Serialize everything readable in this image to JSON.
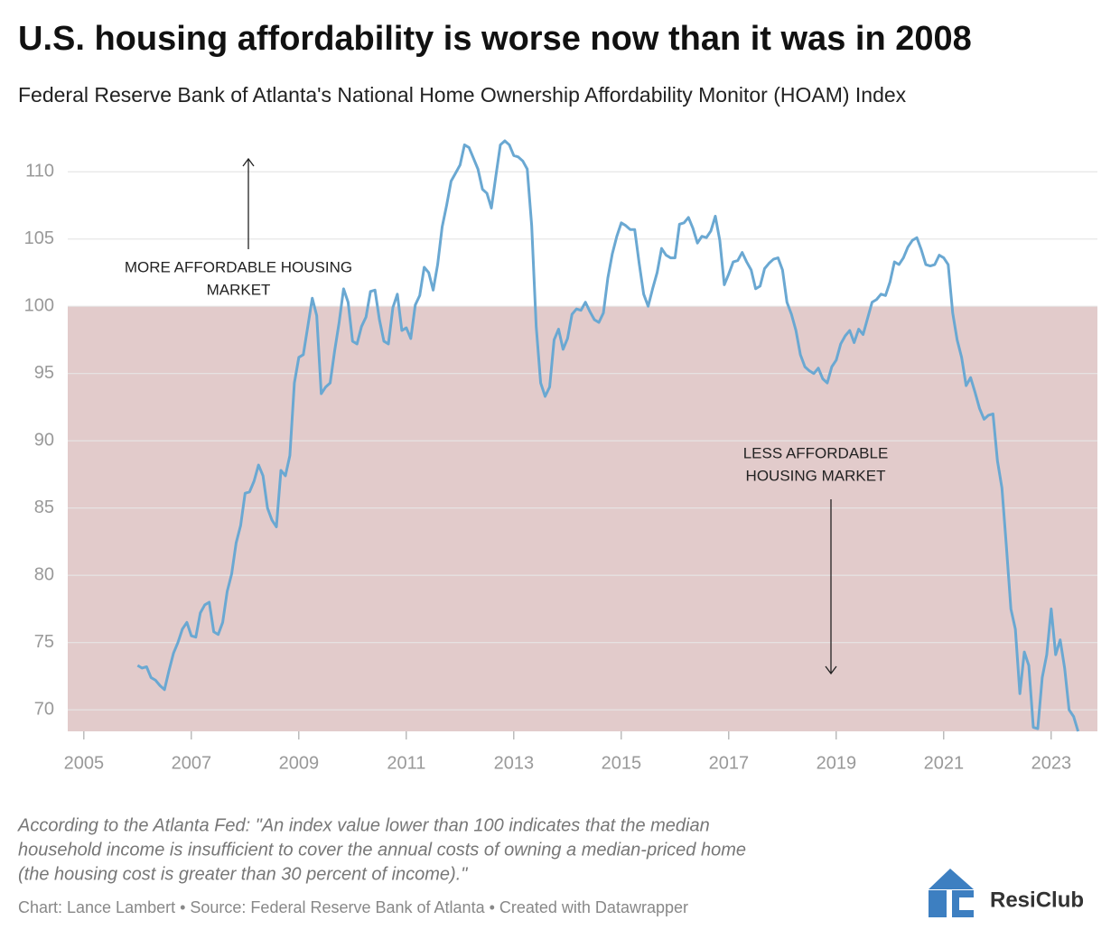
{
  "chart_data": {
    "type": "line",
    "title": "U.S. housing affordability is worse now than it was in 2008",
    "subtitle": "Federal Reserve Bank of Atlanta's National Home Ownership Affordability Monitor (HOAM) Index",
    "annotations": [
      {
        "lines": [
          "MORE AFFORDABLE HOUSING",
          "MARKET"
        ]
      },
      {
        "lines": [
          "LESS AFFORDABLE",
          "HOUSING MARKET"
        ]
      }
    ],
    "notes": [
      "According to the Atlanta Fed: \"An index value lower than 100 indicates that the median",
      "household income is insufficient to cover the annual costs of owning a median-priced home",
      "(the housing cost is greater than 30 percent of income).\""
    ],
    "source": "Chart: Lance Lambert • Source: Federal Reserve Bank of Atlanta • Created with Datawrapper",
    "brand": "ResiClub",
    "color": "#6aa8d2",
    "shade_below": 100,
    "shade_color": "#e2cbcb",
    "grid": true,
    "xlim": [
      2004.7,
      2023.86
    ],
    "ylim": [
      68.4,
      112.7
    ],
    "xticks": [
      2005,
      2007,
      2009,
      2011,
      2013,
      2015,
      2017,
      2019,
      2021,
      2023
    ],
    "yticks": [
      70,
      75,
      80,
      85,
      90,
      95,
      100,
      105,
      110
    ],
    "x": [
      2006,
      2006.083,
      2006.167,
      2006.25,
      2006.333,
      2006.417,
      2006.5,
      2006.583,
      2006.667,
      2006.75,
      2006.833,
      2006.917,
      2007,
      2007.083,
      2007.167,
      2007.25,
      2007.333,
      2007.417,
      2007.5,
      2007.583,
      2007.667,
      2007.75,
      2007.833,
      2007.917,
      2008,
      2008.083,
      2008.167,
      2008.25,
      2008.333,
      2008.417,
      2008.5,
      2008.583,
      2008.667,
      2008.75,
      2008.833,
      2008.917,
      2009,
      2009.083,
      2009.167,
      2009.25,
      2009.333,
      2009.417,
      2009.5,
      2009.583,
      2009.667,
      2009.75,
      2009.833,
      2009.917,
      2010,
      2010.083,
      2010.167,
      2010.25,
      2010.333,
      2010.417,
      2010.5,
      2010.583,
      2010.667,
      2010.75,
      2010.833,
      2010.917,
      2011,
      2011.083,
      2011.167,
      2011.25,
      2011.333,
      2011.417,
      2011.5,
      2011.583,
      2011.667,
      2011.75,
      2011.833,
      2011.917,
      2012,
      2012.083,
      2012.167,
      2012.25,
      2012.333,
      2012.417,
      2012.5,
      2012.583,
      2012.667,
      2012.75,
      2012.833,
      2012.917,
      2013,
      2013.083,
      2013.167,
      2013.25,
      2013.333,
      2013.417,
      2013.5,
      2013.583,
      2013.667,
      2013.75,
      2013.833,
      2013.917,
      2014,
      2014.083,
      2014.167,
      2014.25,
      2014.333,
      2014.417,
      2014.5,
      2014.583,
      2014.667,
      2014.75,
      2014.833,
      2014.917,
      2015,
      2015.083,
      2015.167,
      2015.25,
      2015.333,
      2015.417,
      2015.5,
      2015.583,
      2015.667,
      2015.75,
      2015.833,
      2015.917,
      2016,
      2016.083,
      2016.167,
      2016.25,
      2016.333,
      2016.417,
      2016.5,
      2016.583,
      2016.667,
      2016.75,
      2016.833,
      2016.917,
      2017,
      2017.083,
      2017.167,
      2017.25,
      2017.333,
      2017.417,
      2017.5,
      2017.583,
      2017.667,
      2017.75,
      2017.833,
      2017.917,
      2018,
      2018.083,
      2018.167,
      2018.25,
      2018.333,
      2018.417,
      2018.5,
      2018.583,
      2018.667,
      2018.75,
      2018.833,
      2018.917,
      2019,
      2019.083,
      2019.167,
      2019.25,
      2019.333,
      2019.417,
      2019.5,
      2019.583,
      2019.667,
      2019.75,
      2019.833,
      2019.917,
      2020,
      2020.083,
      2020.167,
      2020.25,
      2020.333,
      2020.417,
      2020.5,
      2020.583,
      2020.667,
      2020.75,
      2020.833,
      2020.917,
      2021,
      2021.083,
      2021.167,
      2021.25,
      2021.333,
      2021.417,
      2021.5,
      2021.583,
      2021.667,
      2021.75,
      2021.833,
      2021.917,
      2022,
      2022.083,
      2022.167,
      2022.25,
      2022.333,
      2022.417,
      2022.5,
      2022.583,
      2022.667,
      2022.75,
      2022.833,
      2022.917,
      2023,
      2023.083,
      2023.167,
      2023.25,
      2023.333,
      2023.417,
      2023.5
    ],
    "values": [
      73.3,
      73.1,
      73.2,
      72.4,
      72.2,
      71.8,
      71.5,
      72.9,
      74.2,
      75.0,
      76.0,
      76.5,
      75.5,
      75.4,
      77.2,
      77.8,
      78.0,
      75.8,
      75.6,
      76.5,
      78.8,
      80.1,
      82.4,
      83.7,
      86.1,
      86.2,
      87.0,
      88.2,
      87.4,
      85.0,
      84.1,
      83.6,
      87.8,
      87.4,
      88.9,
      94.3,
      96.2,
      96.4,
      98.5,
      100.6,
      99.3,
      93.5,
      94.0,
      94.3,
      96.7,
      98.8,
      101.3,
      100.3,
      97.4,
      97.2,
      98.5,
      99.2,
      101.1,
      101.2,
      99.0,
      97.4,
      97.2,
      99.9,
      100.9,
      98.2,
      98.4,
      97.6,
      100.1,
      100.8,
      102.9,
      102.5,
      101.2,
      103.1,
      105.9,
      107.5,
      109.3,
      109.9,
      110.5,
      112.0,
      111.8,
      111.0,
      110.2,
      108.7,
      108.4,
      107.3,
      109.7,
      112.0,
      112.3,
      112.0,
      111.2,
      111.1,
      110.8,
      110.2,
      106.0,
      98.5,
      94.3,
      93.3,
      94.0,
      97.5,
      98.3,
      96.8,
      97.6,
      99.4,
      99.8,
      99.7,
      100.3,
      99.6,
      99.0,
      98.8,
      99.5,
      102.1,
      103.9,
      105.2,
      106.2,
      106.0,
      105.7,
      105.7,
      103.2,
      100.9,
      100.0,
      101.3,
      102.5,
      104.3,
      103.8,
      103.6,
      103.6,
      106.1,
      106.2,
      106.6,
      105.8,
      104.7,
      105.2,
      105.1,
      105.6,
      106.7,
      104.9,
      101.6,
      102.4,
      103.3,
      103.4,
      104.0,
      103.3,
      102.7,
      101.3,
      101.5,
      102.8,
      103.2,
      103.5,
      103.6,
      102.7,
      100.3,
      99.4,
      98.2,
      96.4,
      95.5,
      95.2,
      95.0,
      95.4,
      94.6,
      94.3,
      95.5,
      96.0,
      97.2,
      97.8,
      98.2,
      97.3,
      98.3,
      97.9,
      99.1,
      100.3,
      100.5,
      100.9,
      100.8,
      101.8,
      103.3,
      103.1,
      103.6,
      104.4,
      104.9,
      105.1,
      104.2,
      103.1,
      103.0,
      103.1,
      103.8,
      103.6,
      103.1,
      99.5,
      97.5,
      96.2,
      94.1,
      94.7,
      93.6,
      92.4,
      91.6,
      91.9,
      92.0,
      88.5,
      86.5,
      82.1,
      77.5,
      76.0,
      71.2,
      74.3,
      73.3,
      68.7,
      68.6,
      72.4,
      74.1,
      77.5,
      74.1,
      75.2,
      73.1,
      70.0,
      69.5,
      68.4
    ]
  }
}
